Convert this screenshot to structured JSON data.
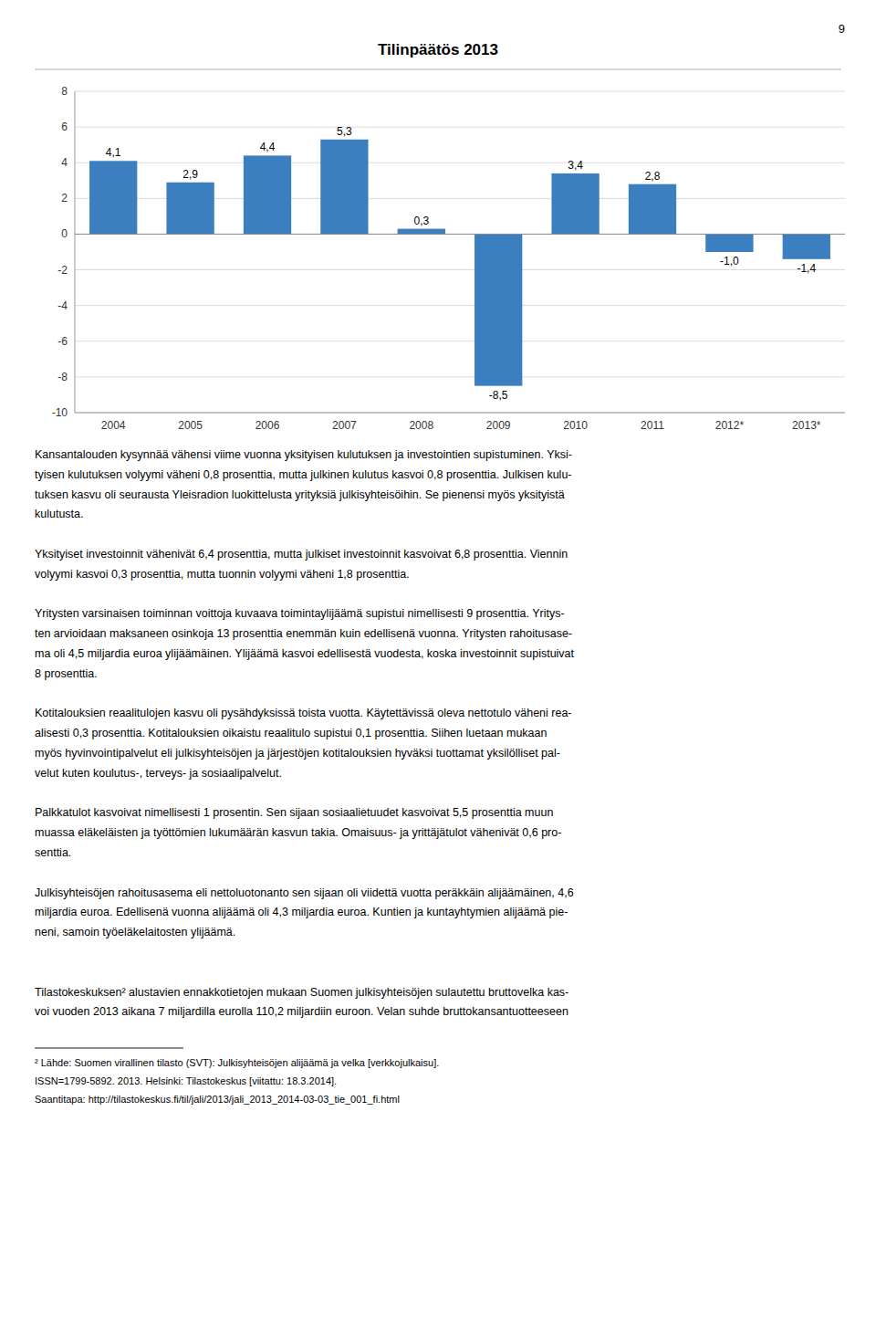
{
  "chart_data": {
    "type": "bar",
    "title": "Tilinpäätös 2013",
    "categories": [
      "2004",
      "2005",
      "2006",
      "2007",
      "2008",
      "2009",
      "2010",
      "2011",
      "2012*",
      "2013*"
    ],
    "values": [
      4.1,
      2.9,
      4.4,
      5.3,
      0.3,
      -8.5,
      3.4,
      2.8,
      -1.0,
      -1.4
    ],
    "value_labels": [
      "4,1",
      "2,9",
      "4,4",
      "5,3",
      "0,3",
      "-8,5",
      "3,4",
      "2,8",
      "-1,0",
      "-1,4"
    ],
    "data_labels": true,
    "color": "#3C7FC0",
    "ylim": [
      -10,
      8
    ],
    "yticks": [
      -10,
      -8,
      -6,
      -4,
      -2,
      0,
      2,
      4,
      6,
      8
    ],
    "grid": true
  },
  "page_number": "9",
  "body_paragraphs": [
    [
      "Kansantalouden kysynnää vähensi viime vuonna yksityisen kulutuksen ja investointien supistuminen. Yksi-",
      "tyisen kulutuksen volyymi väheni 0,8 prosenttia, mutta julkinen kulutus kasvoi 0,8 prosenttia. Julkisen kulu-",
      "tuksen kasvu oli seurausta Yleisradion luokittelusta yrityksiä julkisyhteisöihin. Se pienensi myös yksityistä",
      "kulutusta."
    ],
    [
      "Yksityiset investoinnit vähenivät 6,4 prosenttia, mutta julkiset investoinnit kasvoivat 6,8 prosenttia. Viennin",
      "volyymi kasvoi 0,3 prosenttia, mutta tuonnin volyymi väheni 1,8 prosenttia."
    ],
    [
      "Yritysten varsinaisen toiminnan voittoja kuvaava toimintaylijäämä supistui nimellisesti 9 prosenttia. Yritys-",
      "ten arvioidaan maksaneen osinkoja 13 prosenttia enemmän kuin edellisenä vuonna. Yritysten rahoitusase-",
      "ma oli 4,5 miljardia euroa ylijäämäinen. Ylijäämä kasvoi edellisestä vuodesta, koska investoinnit supistuivat",
      "8 prosenttia."
    ],
    [
      "Kotitalouksien reaalitulojen kasvu oli pysähdyksissä toista vuotta. Käytettävissä oleva nettotulo väheni rea-",
      "alisesti 0,3 prosenttia. Kotitalouksien oikaistu reaalitulo supistui 0,1 prosenttia. Siihen luetaan mukaan",
      "myös hyvinvointipalvelut eli julkisyhteisöjen ja järjestöjen kotitalouksien hyväksi tuottamat yksilölliset pal-",
      "velut kuten koulutus-, terveys- ja sosiaalipalvelut."
    ],
    [
      "Palkkatulot kasvoivat nimellisesti 1 prosentin. Sen sijaan sosiaalietuudet kasvoivat 5,5 prosenttia muun",
      "muassa eläkeläisten ja työttömien lukumäärän kasvun takia. Omaisuus- ja yrittäjätulot vähenivät 0,6 pro-",
      "senttia."
    ],
    [
      "Julkisyhteisöjen rahoitusasema eli nettoluotonanto sen sijaan oli viidettä vuotta peräkkäin alijäämäinen, 4,6",
      "miljardia euroa. Edellisenä vuonna alijäämä oli 4,3 miljardia euroa. Kuntien ja kuntayhtymien alijäämä pie-",
      "neni, samoin työeläkelaitosten ylijäämä."
    ],
    [
      "Tilastokeskuksen² alustavien ennakkotietojen mukaan Suomen julkisyhteisöjen sulautettu bruttovelka kas-",
      "voi vuoden 2013 aikana 7 miljardilla eurolla 110,2 miljardiin euroon. Velan suhde bruttokansantuotteeseen"
    ]
  ],
  "footnote_lines": [
    "² Lähde: Suomen virallinen tilasto (SVT): Julkisyhteisöjen alijäämä ja velka [verkkojulkaisu].",
    "ISSN=1799-5892. 2013. Helsinki: Tilastokeskus [viitattu: 18.3.2014].",
    "Saantitapa: http://tilastokeskus.fi/til/jali/2013/jali_2013_2014-03-03_tie_001_fi.html"
  ]
}
